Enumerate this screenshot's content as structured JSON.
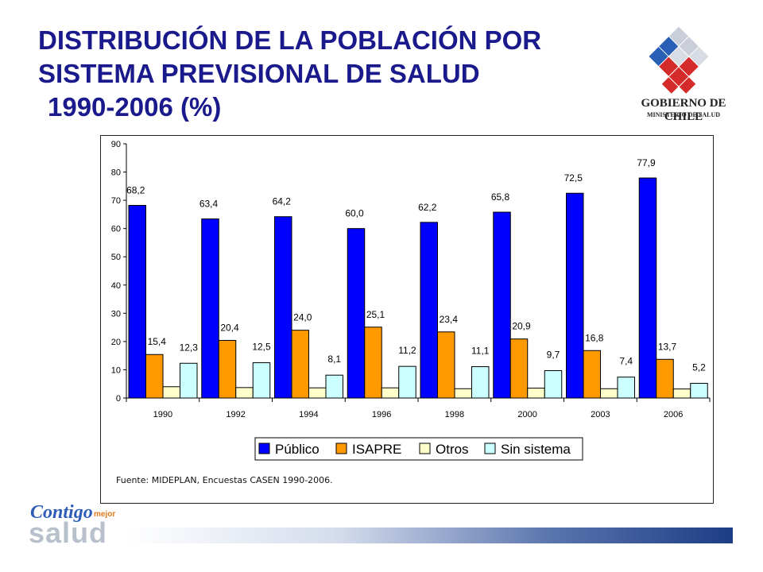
{
  "header": {
    "title_line1": "DISTRIBUCIÓN DE LA POBLACIÓN POR",
    "title_line2": "SISTEMA PREVISIONAL DE SALUD",
    "title_line3": "1990-2006 (%)"
  },
  "logo": {
    "line1": "GOBIERNO DE CHILE",
    "line2": "MINISTERIO DE SALUD"
  },
  "chart_data": {
    "type": "bar",
    "categories": [
      "1990",
      "1992",
      "1994",
      "1996",
      "1998",
      "2000",
      "2003",
      "2006"
    ],
    "series": [
      {
        "name": "Público",
        "color": "#0000ff",
        "values": [
          68.2,
          63.4,
          64.2,
          60.0,
          62.2,
          65.8,
          72.5,
          77.9
        ],
        "labels": [
          "68,2",
          "63,4",
          "64,2",
          "60,0",
          "62,2",
          "65,8",
          "72,5",
          "77,9"
        ]
      },
      {
        "name": "ISAPRE",
        "color": "#ff9900",
        "values": [
          15.4,
          20.4,
          24.0,
          25.1,
          23.4,
          20.9,
          16.8,
          13.7
        ],
        "labels": [
          "15,4",
          "20,4",
          "24,0",
          "25,1",
          "23,4",
          "20,9",
          "16,8",
          "13,7"
        ]
      },
      {
        "name": "Otros",
        "color": "#ffffcc",
        "values": [
          4.0,
          3.7,
          3.6,
          3.6,
          3.3,
          3.5,
          3.3,
          3.2
        ],
        "labels": [
          "",
          "",
          "",
          "",
          "",
          "",
          "",
          ""
        ]
      },
      {
        "name": "Sin sistema",
        "color": "#ccffff",
        "values": [
          12.3,
          12.5,
          8.1,
          11.2,
          11.1,
          9.7,
          7.4,
          5.2
        ],
        "labels": [
          "12,3",
          "12,5",
          "8,1",
          "11,2",
          "11,1",
          "9,7",
          "7,4",
          "5,2"
        ]
      }
    ],
    "yticks": [
      "0",
      "10",
      "20",
      "30",
      "40",
      "50",
      "60",
      "70",
      "80",
      "90"
    ],
    "ylim": [
      0,
      90
    ],
    "grid": false,
    "legend_position": "bottom"
  },
  "source_note": "Fuente: MIDEPLAN, Encuestas CASEN 1990-2006.",
  "footer_logo": {
    "word1": "Contigo",
    "word2": "mejor",
    "word3": "salud"
  }
}
